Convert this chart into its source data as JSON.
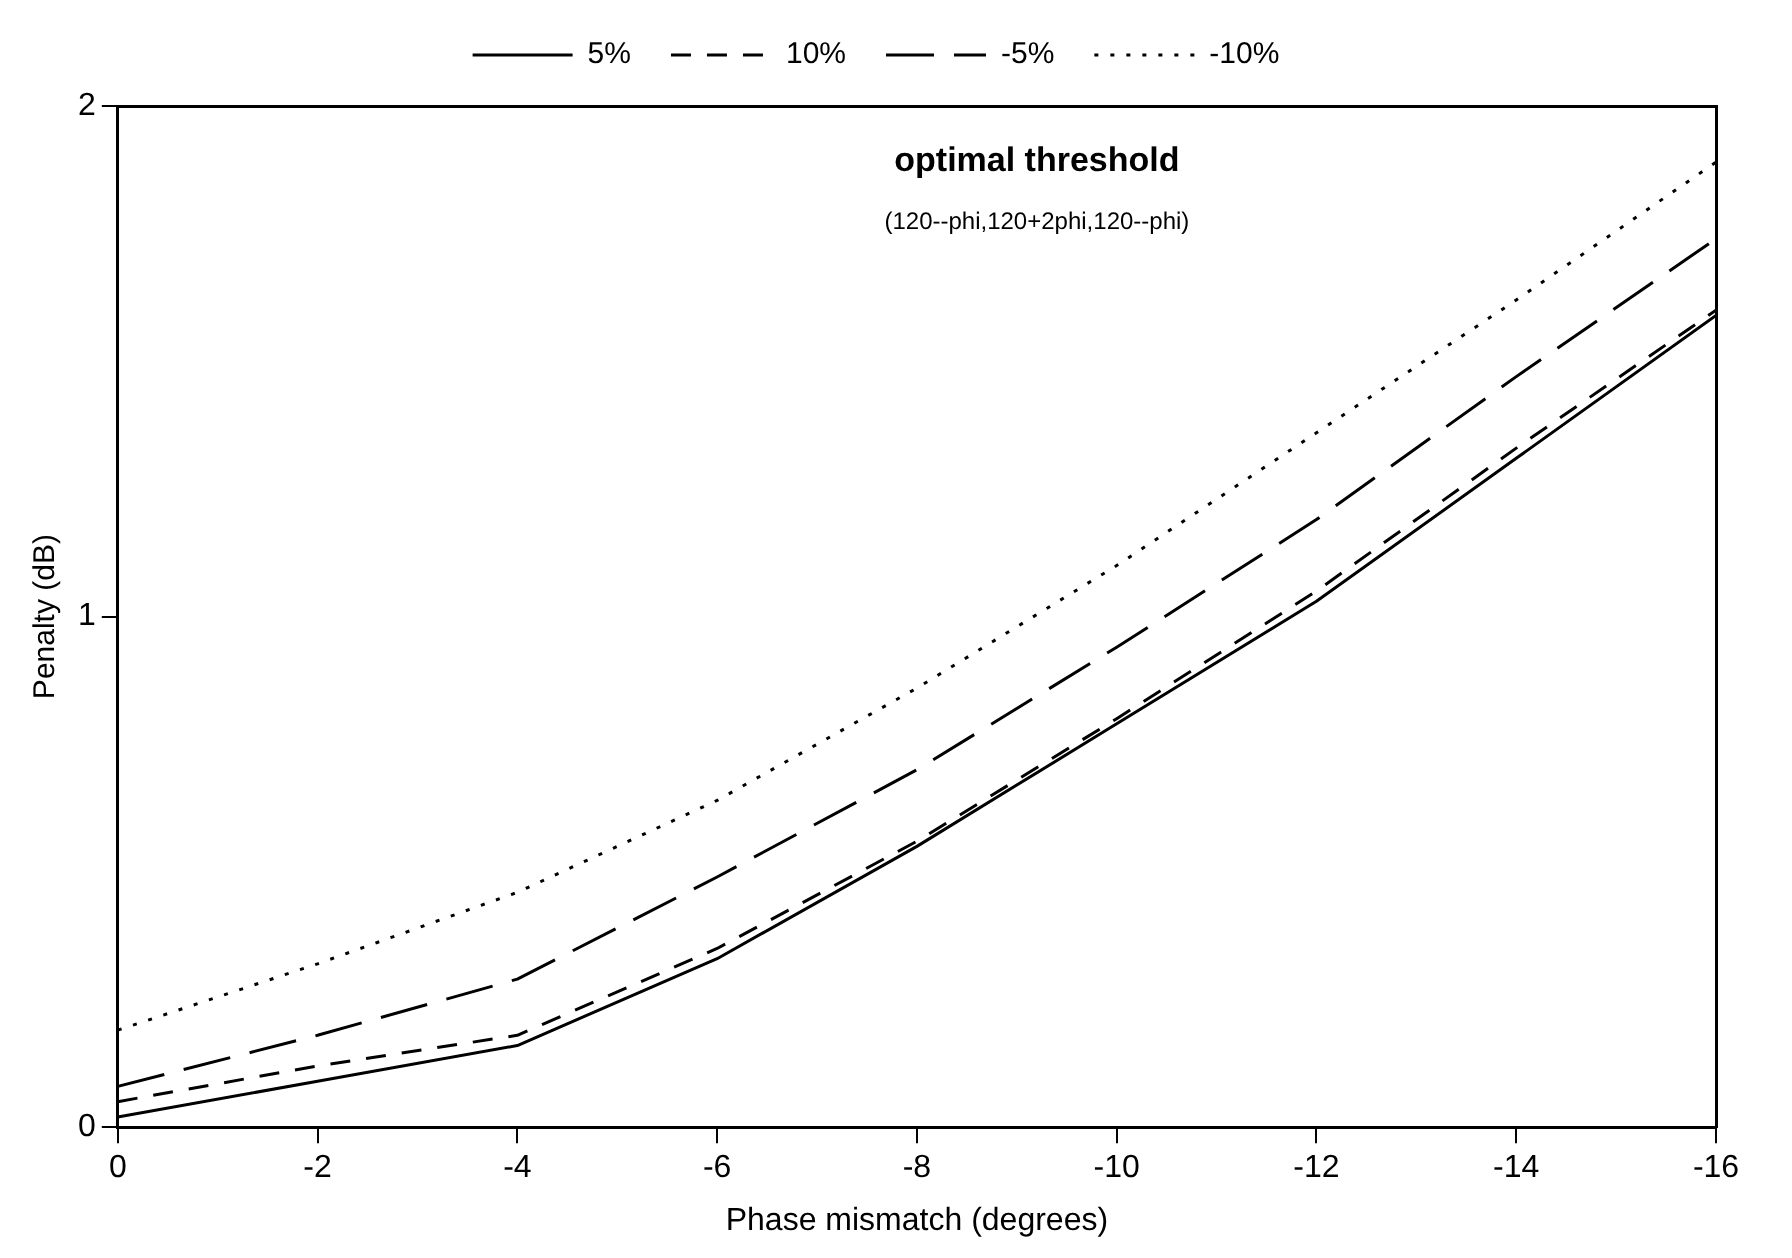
{
  "chart_data": {
    "type": "line",
    "title": "optimal threshold",
    "subtitle": "(120--phi,120+2phi,120--phi)",
    "xlabel": "Phase mismatch (degrees)",
    "ylabel": "Penalty (dB)",
    "x": [
      0,
      -2,
      -4,
      -6,
      -8,
      -10,
      -12,
      -14,
      -16
    ],
    "series": [
      {
        "name": "5%",
        "color": "#000000",
        "line_style": "solid",
        "values": [
          0.02,
          0.09,
          0.16,
          0.33,
          0.55,
          0.79,
          1.03,
          1.31,
          1.59
        ]
      },
      {
        "name": "10%",
        "color": "#000000",
        "line_style": "dashed",
        "values": [
          0.05,
          0.12,
          0.18,
          0.35,
          0.56,
          0.8,
          1.05,
          1.33,
          1.6
        ]
      },
      {
        "name": "-5%",
        "color": "#000000",
        "line_style": "longdash",
        "values": [
          0.08,
          0.18,
          0.29,
          0.49,
          0.7,
          0.94,
          1.19,
          1.47,
          1.74
        ]
      },
      {
        "name": "-10%",
        "color": "#000000",
        "line_style": "dotted",
        "values": [
          0.19,
          0.32,
          0.46,
          0.64,
          0.86,
          1.1,
          1.36,
          1.62,
          1.89
        ]
      }
    ],
    "xlim": [
      0,
      -16
    ],
    "xticks": [
      0,
      -2,
      -4,
      -6,
      -8,
      -10,
      -12,
      -14,
      -16
    ],
    "ylim": [
      0,
      2
    ],
    "yticks": [
      0,
      1,
      2
    ],
    "legend": "top",
    "grid": false,
    "marker": "none"
  }
}
